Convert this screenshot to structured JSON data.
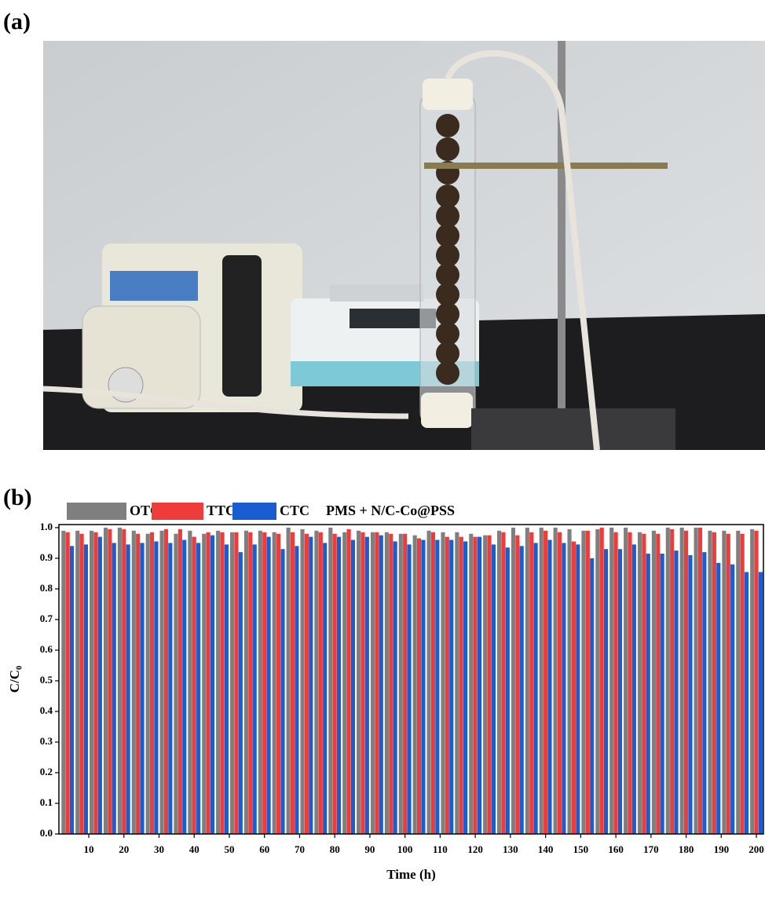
{
  "panel_a": {
    "label": "(a)"
  },
  "chart_data": {
    "type": "bar",
    "panel_label": "(b)",
    "annotation": "PMS + N/C-Co@PSS",
    "x_label": "Time (h)",
    "y_label": "C/C₀",
    "x": [
      4,
      8,
      12,
      16,
      20,
      24,
      28,
      32,
      36,
      40,
      44,
      48,
      52,
      56,
      60,
      64,
      68,
      72,
      76,
      80,
      84,
      88,
      92,
      96,
      100,
      104,
      108,
      112,
      116,
      120,
      124,
      128,
      132,
      136,
      140,
      144,
      148,
      152,
      156,
      160,
      164,
      168,
      172,
      176,
      180,
      184,
      188,
      192,
      196,
      200
    ],
    "series": [
      {
        "name": "OTC",
        "color": "#7f7f7f",
        "values": [
          0.99,
          0.99,
          0.99,
          1.0,
          1.0,
          0.99,
          0.98,
          0.99,
          0.98,
          0.99,
          0.98,
          0.99,
          0.985,
          0.99,
          0.99,
          0.985,
          1.0,
          0.995,
          0.99,
          1.0,
          0.985,
          0.99,
          0.985,
          0.985,
          0.98,
          0.975,
          0.99,
          0.985,
          0.985,
          0.98,
          0.975,
          0.99,
          1.0,
          1.0,
          1.0,
          1.0,
          0.995,
          0.99,
          0.995,
          1.0,
          1.0,
          0.985,
          0.99,
          1.0,
          1.0,
          1.0,
          0.99,
          0.99,
          0.99,
          0.995
        ]
      },
      {
        "name": "TTC",
        "color": "#ef3b39",
        "values": [
          0.985,
          0.98,
          0.985,
          0.995,
          0.995,
          0.98,
          0.985,
          0.995,
          0.995,
          0.97,
          0.985,
          0.985,
          0.985,
          0.985,
          0.985,
          0.98,
          0.985,
          0.98,
          0.985,
          0.98,
          0.995,
          0.985,
          0.985,
          0.98,
          0.98,
          0.965,
          0.985,
          0.97,
          0.97,
          0.97,
          0.975,
          0.985,
          0.975,
          0.985,
          0.99,
          0.985,
          0.955,
          0.99,
          1.0,
          0.985,
          0.985,
          0.98,
          0.98,
          0.995,
          0.99,
          1.0,
          0.985,
          0.98,
          0.98,
          0.99
        ]
      },
      {
        "name": "CTC",
        "color": "#1a5dd1",
        "values": [
          0.94,
          0.945,
          0.97,
          0.95,
          0.945,
          0.95,
          0.955,
          0.95,
          0.96,
          0.95,
          0.975,
          0.945,
          0.92,
          0.945,
          0.97,
          0.93,
          0.94,
          0.97,
          0.95,
          0.97,
          0.96,
          0.97,
          0.975,
          0.955,
          0.945,
          0.96,
          0.96,
          0.96,
          0.955,
          0.97,
          0.945,
          0.935,
          0.94,
          0.95,
          0.96,
          0.95,
          0.945,
          0.9,
          0.93,
          0.93,
          0.945,
          0.915,
          0.915,
          0.925,
          0.91,
          0.92,
          0.885,
          0.88,
          0.855,
          0.855
        ]
      }
    ],
    "xlim": [
      1.5,
      202
    ],
    "xticks": [
      10,
      20,
      30,
      40,
      50,
      60,
      70,
      80,
      90,
      100,
      110,
      120,
      130,
      140,
      150,
      160,
      170,
      180,
      190,
      200
    ],
    "ylim": [
      0,
      1.01
    ],
    "yticks": [
      {
        "value": 0,
        "label": "0.0"
      },
      0.1,
      0.2,
      0.3,
      0.4,
      0.5,
      0.6,
      0.7,
      0.8,
      0.9,
      {
        "value": 1,
        "label": "1.0"
      }
    ]
  }
}
